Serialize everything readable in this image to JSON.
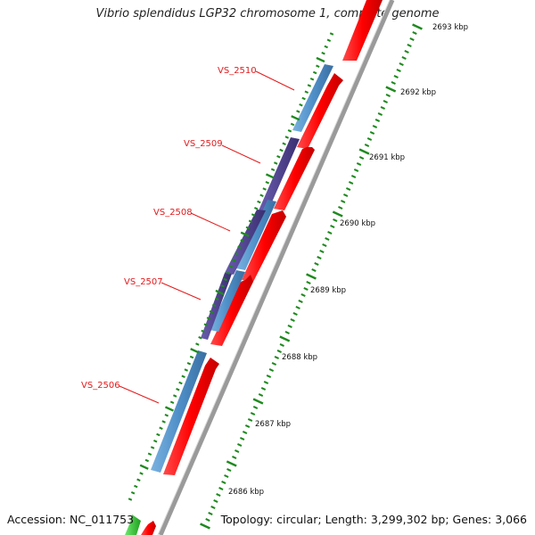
{
  "title": "Vibrio splendidus LGP32 chromosome 1, complete genome",
  "accession": "Accession: NC_011753",
  "summary": "Topology: circular; Length: 3,299,302 bp; Genes: 3,066",
  "scale": {
    "ticks": [
      {
        "label": "2693 kbp"
      },
      {
        "label": "2692 kbp"
      },
      {
        "label": "2691 kbp"
      },
      {
        "label": "2690 kbp"
      },
      {
        "label": "2689 kbp"
      },
      {
        "label": "2688 kbp"
      },
      {
        "label": "2687 kbp"
      },
      {
        "label": "2686 kbp"
      }
    ]
  },
  "genes": [
    {
      "label": "VS_2510"
    },
    {
      "label": "VS_2509"
    },
    {
      "label": "VS_2508"
    },
    {
      "label": "VS_2507"
    },
    {
      "label": "VS_2506"
    }
  ],
  "colors": {
    "cds_forward": "#ff0000",
    "blast_hit_light": "#4f8fc8",
    "blast_hit_dark": "#4a3c8c",
    "tick_green": "#1e8a1e",
    "backbone": "#9a9a9a",
    "label_red": "#e31a1c"
  }
}
